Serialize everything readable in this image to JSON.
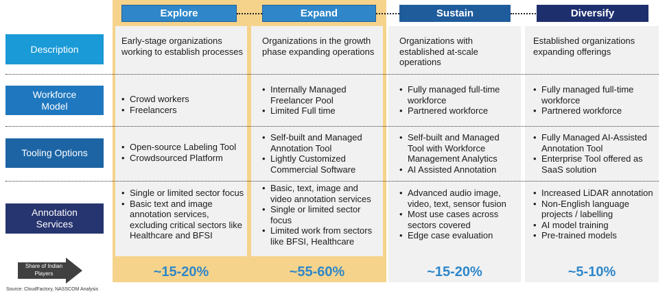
{
  "stages": [
    {
      "name": "Explore",
      "share": "~15-20%"
    },
    {
      "name": "Expand",
      "share": "~55-60%"
    },
    {
      "name": "Sustain",
      "share": "~15-20%"
    },
    {
      "name": "Diversify",
      "share": "~5-10%"
    }
  ],
  "rows": [
    {
      "label": "Description"
    },
    {
      "label": "Workforce Model"
    },
    {
      "label": "Tooling Options"
    },
    {
      "label": "Annotation Services"
    }
  ],
  "cells": {
    "description": [
      "Early-stage organizations working to establish processes",
      "Organizations in the growth phase expanding operations",
      "Organizations with established at-scale operations",
      "Established organizations expanding offerings"
    ],
    "workforce": [
      [
        "Crowd workers",
        "Freelancers"
      ],
      [
        "Internally Managed Freelancer Pool",
        "Limited Full time"
      ],
      [
        "Fully managed full-time workforce",
        "Partnered workforce"
      ],
      [
        "Fully managed full-time workforce",
        "Partnered workforce"
      ]
    ],
    "tooling": [
      [
        "Open-source Labeling Tool",
        "Crowdsourced Platform"
      ],
      [
        "Self-built and Managed Annotation Tool",
        "Lightly Customized Commercial Software"
      ],
      [
        "Self-built and Managed Tool with Workforce Management Analytics",
        "AI Assisted Annotation"
      ],
      [
        "Fully Managed AI-Assisted Annotation Tool",
        "Enterprise Tool offered as SaaS solution"
      ]
    ],
    "services": [
      [
        "Single or limited sector focus",
        "Basic text and image annotation services, excluding critical sectors like Healthcare and BFSI"
      ],
      [
        "Basic, text, image and video annotation services",
        "Single or limited sector focus",
        "Limited work from sectors like BFSI, Healthcare"
      ],
      [
        "Advanced audio image, video, text, sensor fusion",
        "Most use cases across sectors covered",
        "Edge case evaluation"
      ],
      [
        "Increased LiDAR annotation",
        "Non-English language projects / labelling",
        "AI model training",
        "Pre-trained models"
      ]
    ]
  },
  "share_label": "Share of Indian Players",
  "source": "Source: CloudFactory, NASSCOM Analysis",
  "colors": {
    "highlight": "#f5d38b",
    "panel": "#f1f1f1",
    "share_text": "#2f87c9",
    "explore": "#2f87c9",
    "expand": "#2f87c9",
    "sustain": "#1f5c9c",
    "diversify": "#1e2f6e"
  }
}
